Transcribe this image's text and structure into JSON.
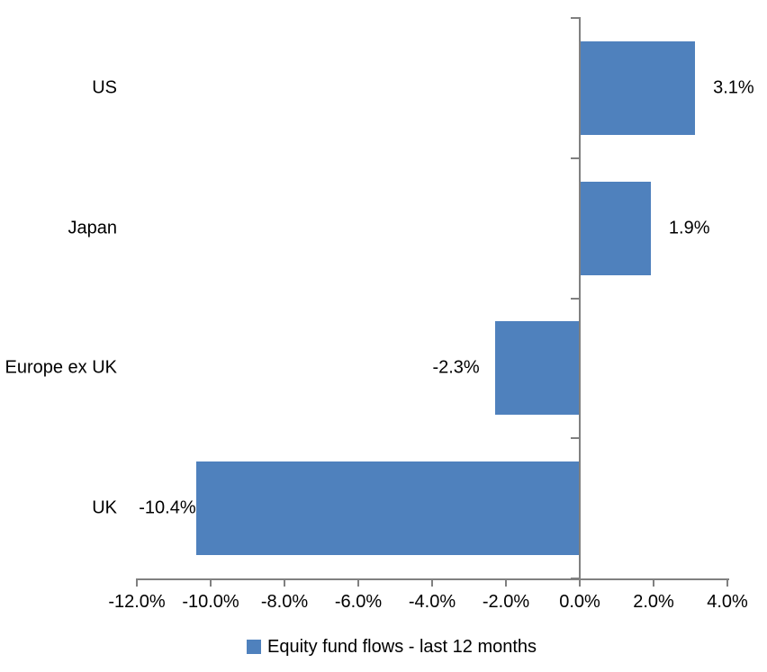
{
  "chart_data": {
    "type": "bar",
    "orientation": "horizontal",
    "title": "",
    "categories": [
      "US",
      "Japan",
      "Europe ex UK",
      "UK"
    ],
    "series": [
      {
        "name": "Equity fund flows - last 12 months",
        "values": [
          3.1,
          1.9,
          -2.3,
          -10.4
        ],
        "data_labels": [
          "3.1%",
          "1.9%",
          "-2.3%",
          "-10.4%"
        ]
      }
    ],
    "x_axis": {
      "min": -12,
      "max": 4,
      "tick_step": 2,
      "ticks": [
        -12,
        -10,
        -8,
        -6,
        -4,
        -2,
        0,
        2,
        4
      ],
      "tick_labels": [
        "-12.0%",
        "-10.0%",
        "-8.0%",
        "-6.0%",
        "-4.0%",
        "-2.0%",
        "0.0%",
        "2.0%",
        "4.0%"
      ]
    },
    "legend": {
      "position": "bottom",
      "items": [
        {
          "label": "Equity fund flows - last 12 months",
          "swatch": "square"
        }
      ]
    },
    "colors": {
      "bar": "#4F81BD",
      "axis": "#808080",
      "text": "#000000",
      "background": "#FFFFFF"
    },
    "grid": false
  }
}
